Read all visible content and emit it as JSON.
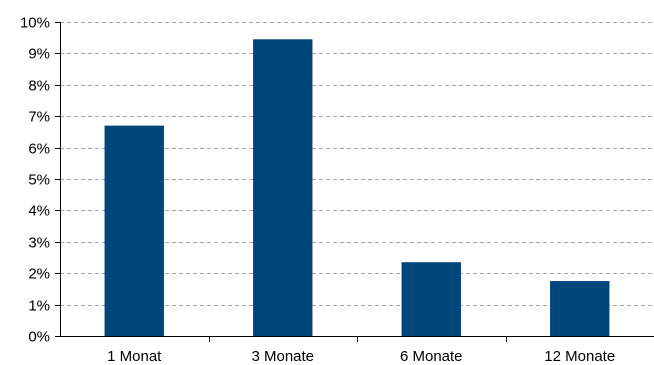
{
  "chart_data": {
    "type": "bar",
    "categories": [
      "1 Monat",
      "3 Monate",
      "6 Monate",
      "12 Monate"
    ],
    "values": [
      6.7,
      9.45,
      2.35,
      1.75
    ],
    "y_tick_labels": [
      "0%",
      "1%",
      "2%",
      "3%",
      "4%",
      "5%",
      "6%",
      "7%",
      "8%",
      "9%",
      "10%"
    ],
    "ylim": [
      0,
      10
    ],
    "y_unit": "%",
    "grid": "horizontal-dashed",
    "legend": "none",
    "bar_color": "#00467a",
    "grid_color": "#a6a6a6",
    "axis_color": "#000000"
  }
}
